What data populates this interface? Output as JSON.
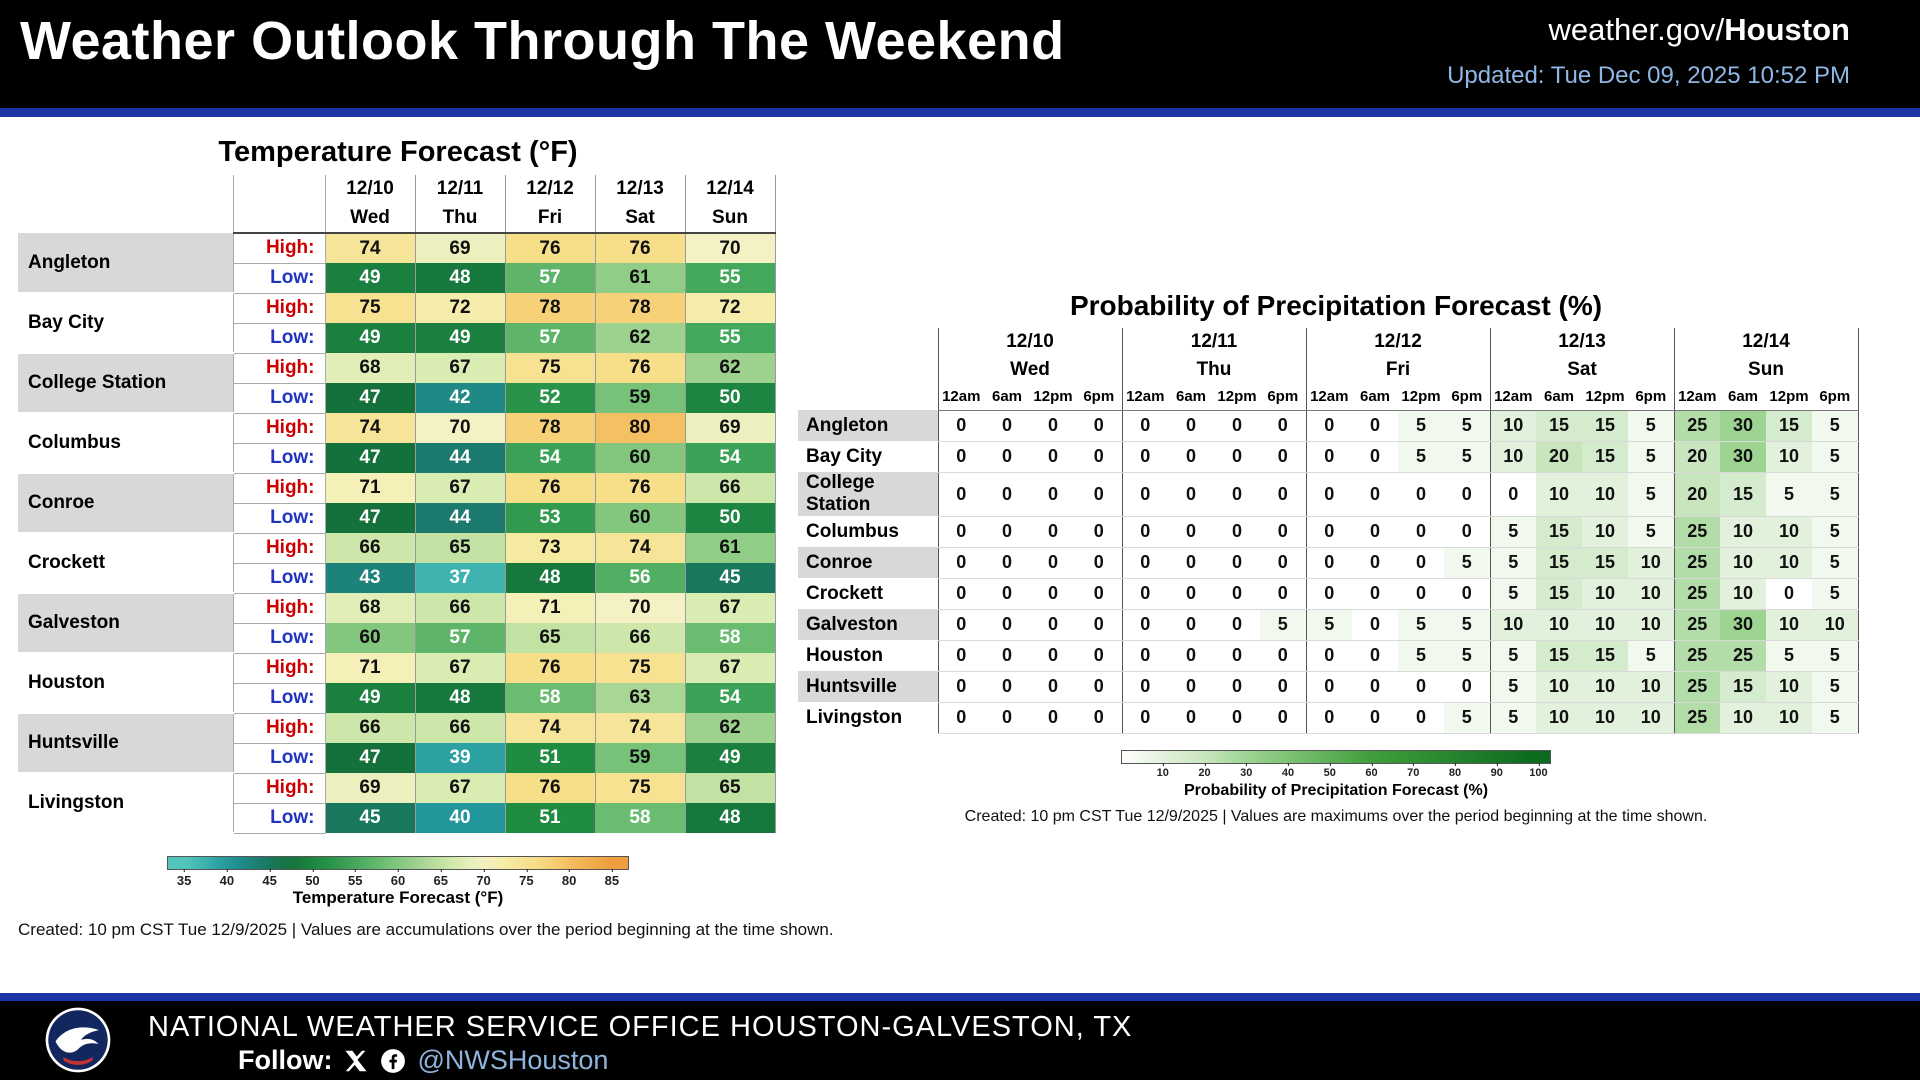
{
  "header": {
    "title": "Weather Outlook Through The Weekend",
    "site_prefix": "weather.gov/",
    "site_name": "Houston",
    "updated": "Updated: Tue Dec 09, 2025 10:52 PM"
  },
  "footer": {
    "office": "NATIONAL WEATHER SERVICE OFFICE HOUSTON-GALVESTON, TX",
    "follow_label": "Follow:",
    "handle": "@NWSHouston"
  },
  "colors": {
    "divider_blue": "#1c34a6",
    "updated_text": "#8fb7e4",
    "high_label_red": "#cc0000",
    "low_label_blue": "#1f35c0",
    "city_shade_gray": "#d8d8d8"
  },
  "chart_data": [
    {
      "type": "heatmap",
      "name": "temperature-forecast",
      "title": "Temperature Forecast (°F)",
      "dates": [
        "12/10",
        "12/11",
        "12/12",
        "12/13",
        "12/14"
      ],
      "days": [
        "Wed",
        "Thu",
        "Fri",
        "Sat",
        "Sun"
      ],
      "high_label": "High:",
      "low_label": "Low:",
      "unit": "°F",
      "rows": [
        {
          "city": "Angleton",
          "high": [
            74,
            69,
            76,
            76,
            70
          ],
          "low": [
            49,
            48,
            57,
            61,
            55
          ]
        },
        {
          "city": "Bay City",
          "high": [
            75,
            72,
            78,
            78,
            72
          ],
          "low": [
            49,
            49,
            57,
            62,
            55
          ]
        },
        {
          "city": "College Station",
          "high": [
            68,
            67,
            75,
            76,
            62
          ],
          "low": [
            47,
            42,
            52,
            59,
            50
          ]
        },
        {
          "city": "Columbus",
          "high": [
            74,
            70,
            78,
            80,
            69
          ],
          "low": [
            47,
            44,
            54,
            60,
            54
          ]
        },
        {
          "city": "Conroe",
          "high": [
            71,
            67,
            76,
            76,
            66
          ],
          "low": [
            47,
            44,
            53,
            60,
            50
          ]
        },
        {
          "city": "Crockett",
          "high": [
            66,
            65,
            73,
            74,
            61
          ],
          "low": [
            43,
            37,
            48,
            56,
            45
          ]
        },
        {
          "city": "Galveston",
          "high": [
            68,
            66,
            71,
            70,
            67
          ],
          "low": [
            60,
            57,
            65,
            66,
            58
          ]
        },
        {
          "city": "Houston",
          "high": [
            71,
            67,
            76,
            75,
            67
          ],
          "low": [
            49,
            48,
            58,
            63,
            54
          ]
        },
        {
          "city": "Huntsville",
          "high": [
            66,
            66,
            74,
            74,
            62
          ],
          "low": [
            47,
            39,
            51,
            59,
            49
          ]
        },
        {
          "city": "Livingston",
          "high": [
            69,
            67,
            76,
            75,
            65
          ],
          "low": [
            45,
            40,
            51,
            58,
            48
          ]
        }
      ],
      "color_scale": {
        "ticks": [
          35,
          40,
          45,
          50,
          55,
          60,
          65,
          70,
          75,
          80,
          85
        ],
        "label": "Temperature Forecast (°F)"
      },
      "caption": "Created: 10 pm CST Tue 12/9/2025  |  Values are accumulations over the period beginning at the time shown."
    },
    {
      "type": "heatmap",
      "name": "precipitation-probability-forecast",
      "title": "Probability of Precipitation Forecast (%)",
      "dates": [
        "12/10",
        "12/11",
        "12/12",
        "12/13",
        "12/14"
      ],
      "days": [
        "Wed",
        "Thu",
        "Fri",
        "Sat",
        "Sun"
      ],
      "times": [
        "12am",
        "6am",
        "12pm",
        "6pm"
      ],
      "unit": "%",
      "rows": [
        {
          "city": "Angleton",
          "values": [
            0,
            0,
            0,
            0,
            0,
            0,
            0,
            0,
            0,
            0,
            5,
            5,
            10,
            15,
            15,
            5,
            25,
            30,
            15,
            5
          ]
        },
        {
          "city": "Bay City",
          "values": [
            0,
            0,
            0,
            0,
            0,
            0,
            0,
            0,
            0,
            0,
            5,
            5,
            10,
            20,
            15,
            5,
            20,
            30,
            10,
            5
          ]
        },
        {
          "city": "College Station",
          "values": [
            0,
            0,
            0,
            0,
            0,
            0,
            0,
            0,
            0,
            0,
            0,
            0,
            0,
            10,
            10,
            5,
            20,
            15,
            5,
            5
          ]
        },
        {
          "city": "Columbus",
          "values": [
            0,
            0,
            0,
            0,
            0,
            0,
            0,
            0,
            0,
            0,
            0,
            0,
            5,
            15,
            10,
            5,
            25,
            10,
            10,
            5
          ]
        },
        {
          "city": "Conroe",
          "values": [
            0,
            0,
            0,
            0,
            0,
            0,
            0,
            0,
            0,
            0,
            0,
            5,
            5,
            15,
            15,
            10,
            25,
            10,
            10,
            5
          ]
        },
        {
          "city": "Crockett",
          "values": [
            0,
            0,
            0,
            0,
            0,
            0,
            0,
            0,
            0,
            0,
            0,
            0,
            5,
            15,
            10,
            10,
            25,
            10,
            0,
            5
          ]
        },
        {
          "city": "Galveston",
          "values": [
            0,
            0,
            0,
            0,
            0,
            0,
            0,
            5,
            5,
            0,
            5,
            5,
            10,
            10,
            10,
            10,
            25,
            30,
            10,
            10
          ]
        },
        {
          "city": "Houston",
          "values": [
            0,
            0,
            0,
            0,
            0,
            0,
            0,
            0,
            0,
            0,
            5,
            5,
            5,
            15,
            15,
            5,
            25,
            25,
            5,
            5
          ]
        },
        {
          "city": "Huntsville",
          "values": [
            0,
            0,
            0,
            0,
            0,
            0,
            0,
            0,
            0,
            0,
            0,
            0,
            5,
            10,
            10,
            10,
            25,
            15,
            10,
            5
          ]
        },
        {
          "city": "Livingston",
          "values": [
            0,
            0,
            0,
            0,
            0,
            0,
            0,
            0,
            0,
            0,
            0,
            5,
            5,
            10,
            10,
            10,
            25,
            10,
            10,
            5
          ]
        }
      ],
      "color_scale": {
        "ticks": [
          10,
          20,
          30,
          40,
          50,
          60,
          70,
          80,
          90,
          100
        ],
        "label": "Probability of Precipitation Forecast (%)"
      },
      "caption": "Created: 10 pm CST Tue 12/9/2025  |  Values are maximums over the period beginning at the time shown."
    }
  ]
}
